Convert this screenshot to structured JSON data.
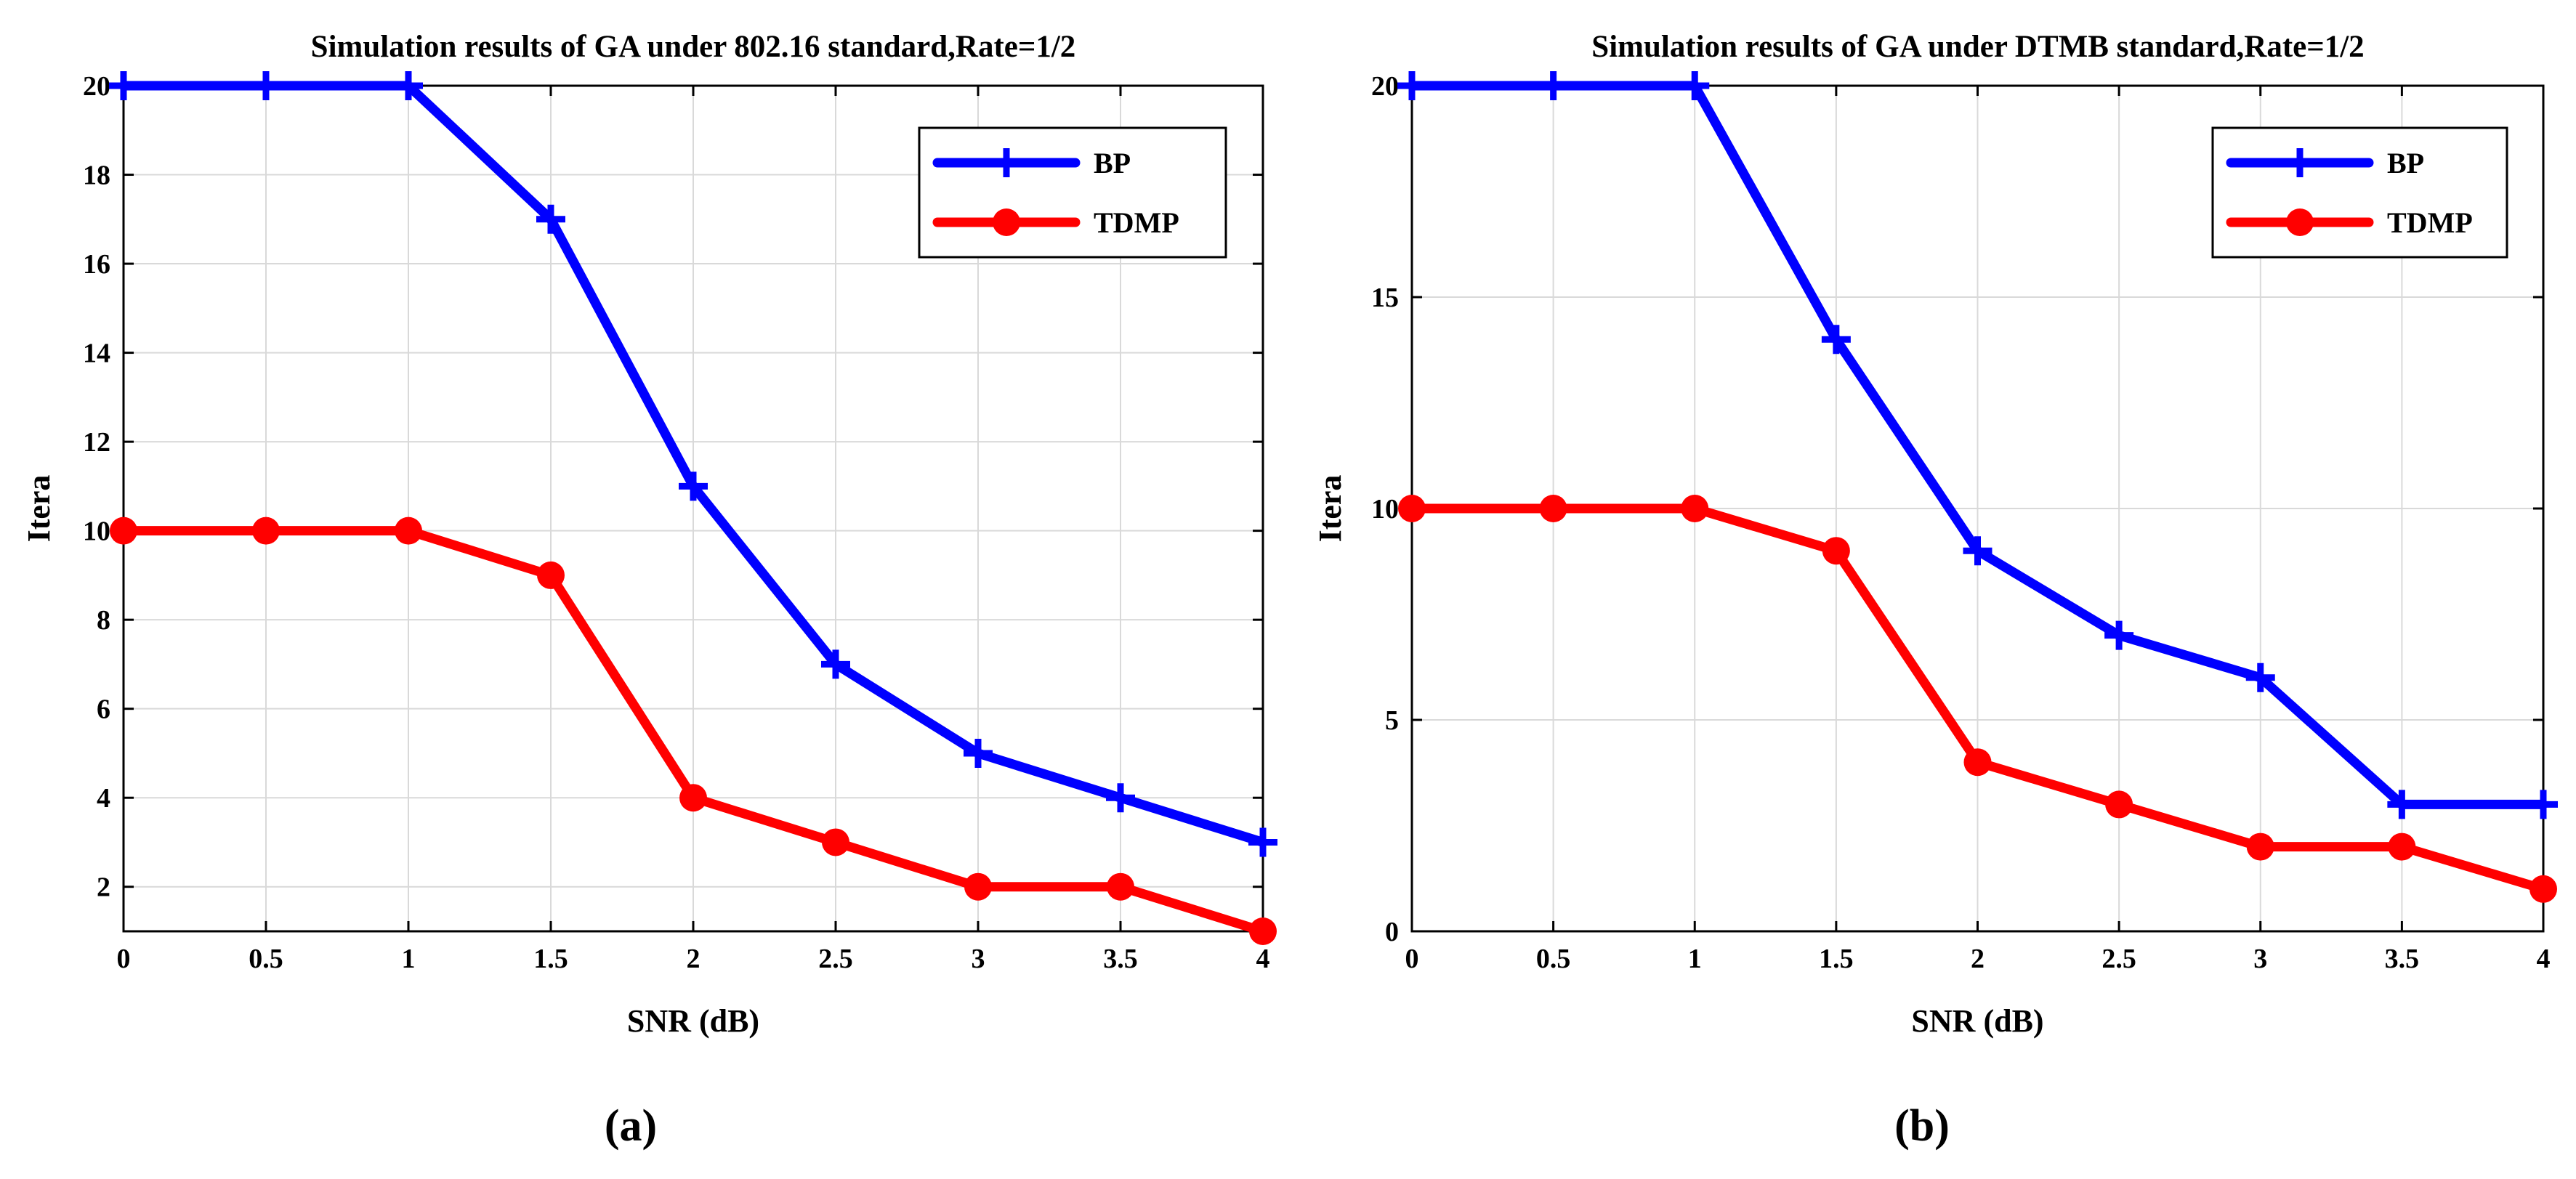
{
  "chart_data": [
    {
      "type": "line",
      "panel_label": "(a)",
      "title": "Simulation results of GA under 802.16 standard,Rate=1/2",
      "xlabel": "SNR (dB)",
      "ylabel": "Itera",
      "xlim": [
        0,
        4
      ],
      "ylim": [
        1,
        20
      ],
      "x_ticks": [
        0,
        0.5,
        1,
        1.5,
        2,
        2.5,
        3,
        3.5,
        4
      ],
      "x_tick_labels": [
        "0",
        "0.5",
        "1",
        "1.5",
        "2",
        "2.5",
        "3",
        "3.5",
        "4"
      ],
      "y_ticks": [
        2,
        4,
        6,
        8,
        10,
        12,
        14,
        16,
        18,
        20
      ],
      "y_tick_labels": [
        "2",
        "4",
        "6",
        "8",
        "10",
        "12",
        "14",
        "16",
        "18",
        "20"
      ],
      "grid": true,
      "legend_position": "top-right",
      "x": [
        0,
        0.5,
        1,
        1.5,
        2,
        2.5,
        3,
        3.5,
        4
      ],
      "series": [
        {
          "name": "BP",
          "color": "#0000ff",
          "marker": "plus",
          "values": [
            20,
            20,
            20,
            17,
            11,
            7,
            5,
            4,
            3
          ]
        },
        {
          "name": "TDMP",
          "color": "#ff0000",
          "marker": "circle",
          "values": [
            10,
            10,
            10,
            9,
            4,
            3,
            2,
            2,
            1
          ]
        }
      ]
    },
    {
      "type": "line",
      "panel_label": "(b)",
      "title": "Simulation results of GA under DTMB standard,Rate=1/2",
      "xlabel": "SNR (dB)",
      "ylabel": "Itera",
      "xlim": [
        0,
        4
      ],
      "ylim": [
        0,
        20
      ],
      "x_ticks": [
        0,
        0.5,
        1,
        1.5,
        2,
        2.5,
        3,
        3.5,
        4
      ],
      "x_tick_labels": [
        "0",
        "0.5",
        "1",
        "1.5",
        "2",
        "2.5",
        "3",
        "3.5",
        "4"
      ],
      "y_ticks": [
        0,
        5,
        10,
        15,
        20
      ],
      "y_tick_labels": [
        "0",
        "5",
        "10",
        "15",
        "20"
      ],
      "grid": true,
      "legend_position": "top-right",
      "x": [
        0,
        0.5,
        1,
        1.5,
        2,
        2.5,
        3,
        3.5,
        4
      ],
      "series": [
        {
          "name": "BP",
          "color": "#0000ff",
          "marker": "plus",
          "values": [
            20,
            20,
            20,
            14,
            9,
            7,
            6,
            3,
            3
          ]
        },
        {
          "name": "TDMP",
          "color": "#ff0000",
          "marker": "circle",
          "values": [
            10,
            10,
            10,
            9,
            4,
            3,
            2,
            2,
            1
          ]
        }
      ]
    }
  ]
}
